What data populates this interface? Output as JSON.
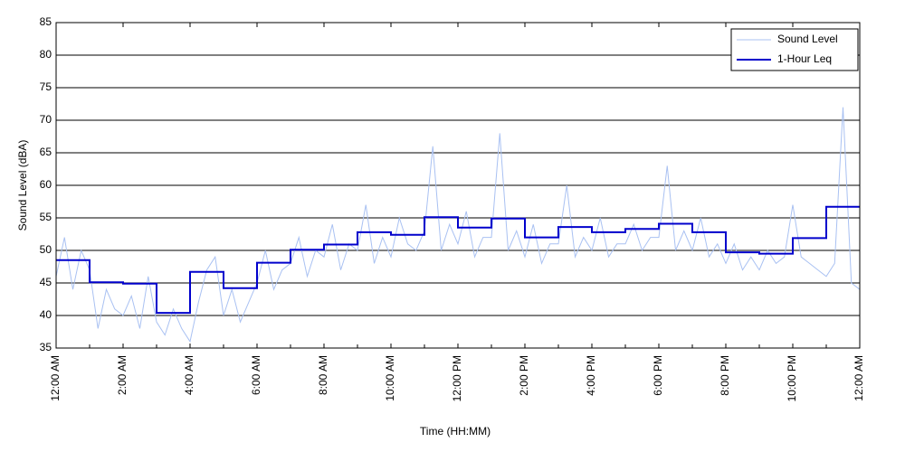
{
  "chart_data": {
    "type": "line",
    "xlabel": "Time (HH:MM)",
    "ylabel": "Sound Level (dBA)",
    "xlim": [
      0,
      24
    ],
    "ylim": [
      35,
      85
    ],
    "xticks": [
      {
        "value": 0,
        "label": "12:00 AM"
      },
      {
        "value": 2,
        "label": "2:00 AM"
      },
      {
        "value": 4,
        "label": "4:00 AM"
      },
      {
        "value": 6,
        "label": "6:00 AM"
      },
      {
        "value": 8,
        "label": "8:00 AM"
      },
      {
        "value": 10,
        "label": "10:00 AM"
      },
      {
        "value": 12,
        "label": "12:00 PM"
      },
      {
        "value": 14,
        "label": "2:00 PM"
      },
      {
        "value": 16,
        "label": "4:00 PM"
      },
      {
        "value": 18,
        "label": "6:00 PM"
      },
      {
        "value": 20,
        "label": "8:00 PM"
      },
      {
        "value": 22,
        "label": "10:00 PM"
      },
      {
        "value": 24,
        "label": "12:00 AM"
      }
    ],
    "yticks": [
      35,
      40,
      45,
      50,
      55,
      60,
      65,
      70,
      75,
      80,
      85
    ],
    "grid": true,
    "legend": "upper right",
    "series": [
      {
        "name": "Sound Level",
        "color": "#a9c1f2",
        "step": false,
        "x": [
          0,
          0.25,
          0.5,
          0.75,
          1,
          1.25,
          1.5,
          1.75,
          2,
          2.25,
          2.5,
          2.75,
          3,
          3.25,
          3.5,
          3.75,
          4,
          4.25,
          4.5,
          4.75,
          5,
          5.25,
          5.5,
          5.75,
          6,
          6.25,
          6.5,
          6.75,
          7,
          7.25,
          7.5,
          7.75,
          8,
          8.25,
          8.5,
          8.75,
          9,
          9.25,
          9.5,
          9.75,
          10,
          10.25,
          10.5,
          10.75,
          11,
          11.25,
          11.5,
          11.75,
          12,
          12.25,
          12.5,
          12.75,
          13,
          13.25,
          13.5,
          13.75,
          14,
          14.25,
          14.5,
          14.75,
          15,
          15.25,
          15.5,
          15.75,
          16,
          16.25,
          16.5,
          16.75,
          17,
          17.25,
          17.5,
          17.75,
          18,
          18.25,
          18.5,
          18.75,
          19,
          19.25,
          19.5,
          19.75,
          20,
          20.25,
          20.5,
          20.75,
          21,
          21.25,
          21.5,
          21.75,
          22,
          22.25,
          22.5,
          22.75,
          23,
          23.25,
          23.5,
          23.75,
          24
        ],
        "values": [
          46,
          52,
          44,
          50,
          47,
          38,
          44,
          41,
          40,
          43,
          38,
          46,
          39,
          37,
          41,
          38,
          36,
          42,
          47,
          49,
          40,
          44,
          39,
          42,
          45,
          50,
          44,
          47,
          48,
          52,
          46,
          50,
          49,
          54,
          47,
          51,
          50,
          57,
          48,
          52,
          49,
          55,
          51,
          50,
          53,
          66,
          50,
          54,
          51,
          56,
          49,
          52,
          52,
          68,
          50,
          53,
          49,
          54,
          48,
          51,
          51,
          60,
          49,
          52,
          50,
          55,
          49,
          51,
          51,
          54,
          50,
          52,
          52,
          63,
          50,
          53,
          50,
          55,
          49,
          51,
          48,
          51,
          47,
          49,
          47,
          50,
          48,
          49,
          57,
          49,
          48,
          47,
          46,
          48,
          72,
          45,
          44
        ]
      },
      {
        "name": "1-Hour Leq",
        "color": "#0000cc",
        "step": true,
        "x": [
          0,
          1,
          2,
          3,
          4,
          5,
          6,
          7,
          8,
          9,
          10,
          11,
          12,
          13,
          14,
          15,
          16,
          17,
          18,
          19,
          20,
          21,
          22,
          23
        ],
        "values": [
          48.5,
          45.1,
          44.9,
          40.4,
          46.7,
          44.2,
          48.1,
          50.1,
          50.9,
          52.8,
          52.4,
          55.1,
          53.5,
          54.9,
          52.0,
          53.6,
          52.8,
          53.3,
          54.1,
          52.8,
          49.7,
          49.5,
          51.9,
          56.7
        ]
      }
    ]
  }
}
